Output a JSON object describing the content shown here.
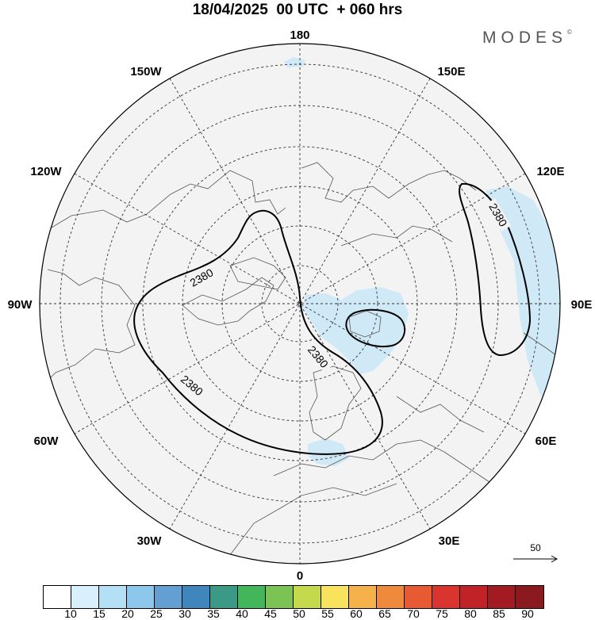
{
  "title": "18/04/2025  00 UTC  + 060 hrs",
  "brand": {
    "text": "MODES",
    "mark": "©"
  },
  "longitude_labels": {
    "top": "180",
    "bottom": "0",
    "left": "90W",
    "right": "90E",
    "upper_left_1": "150W",
    "upper_left_2": "120W",
    "upper_right_1": "150E",
    "upper_right_2": "120E",
    "lower_left_1": "60W",
    "lower_left_2": "30W",
    "lower_right_1": "60E",
    "lower_right_2": "30E"
  },
  "contours": {
    "label": "2380",
    "value": 2380
  },
  "wind_reference": {
    "label": "50"
  },
  "colorbar": {
    "labels": [
      "10",
      "15",
      "20",
      "25",
      "30",
      "35",
      "40",
      "45",
      "50",
      "55",
      "60",
      "65",
      "70",
      "75",
      "80",
      "85",
      "90"
    ],
    "colors": [
      "#ffffff",
      "#d8f0fb",
      "#b4e0f6",
      "#8dc8ec",
      "#649fd3",
      "#3f86bd",
      "#3a9a86",
      "#43b55a",
      "#7cc356",
      "#c4d94b",
      "#f9e35c",
      "#f6b24a",
      "#ef8a3c",
      "#e75a33",
      "#d9342d",
      "#c02327",
      "#a21a22",
      "#8a1a1d"
    ]
  },
  "shading": {
    "fill_color": "#f2f2f2",
    "highlight_color": "#cfe9f7"
  }
}
